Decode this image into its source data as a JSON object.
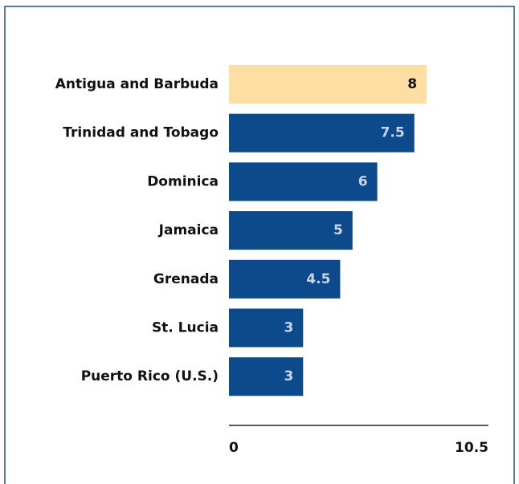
{
  "chart_data": {
    "type": "barh",
    "categories": [
      "Antigua and Barbuda",
      "Trinidad and Tobago",
      "Dominica",
      "Jamaica",
      "Grenada",
      "St. Lucia",
      "Puerto Rico (U.S.)"
    ],
    "values": [
      8,
      7.5,
      6,
      5,
      4.5,
      3,
      3
    ],
    "colors": [
      "#fddfa4",
      "#0d4a8c",
      "#0d4a8c",
      "#0d4a8c",
      "#0d4a8c",
      "#0d4a8c",
      "#0d4a8c"
    ],
    "xlim": [
      0,
      10.5
    ],
    "xticks": [
      0,
      10.5
    ]
  }
}
